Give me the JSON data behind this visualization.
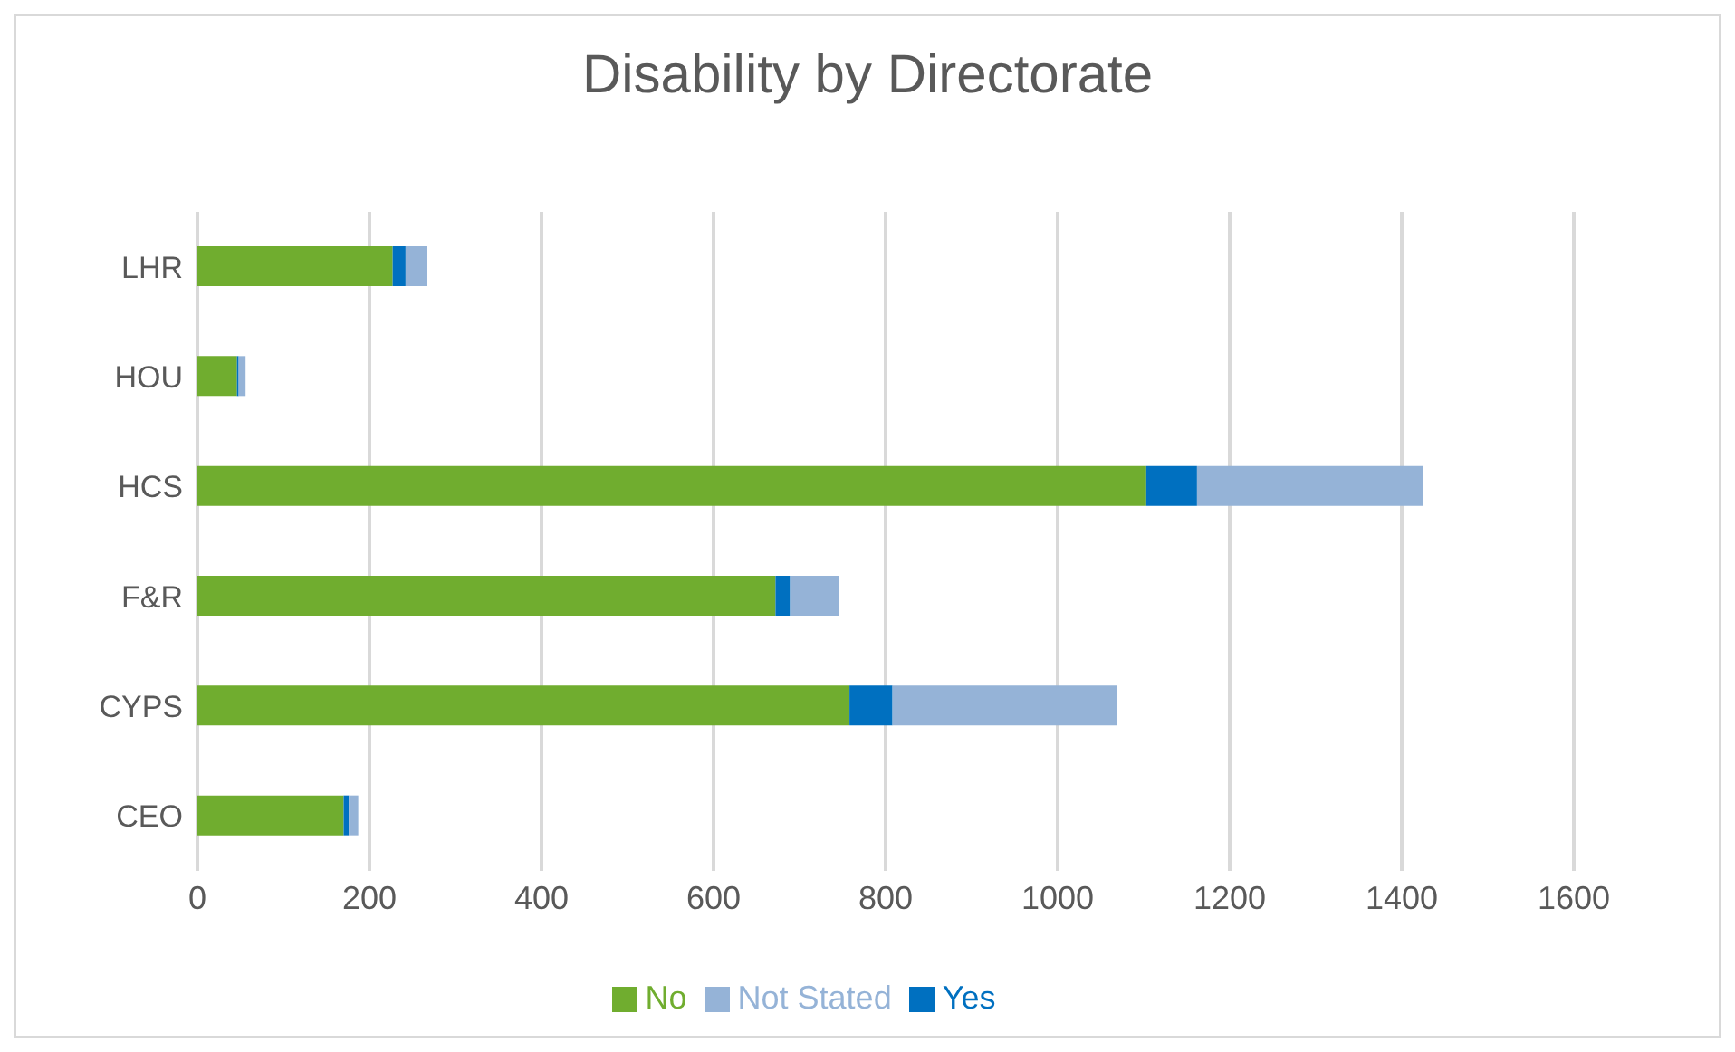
{
  "chart_data": {
    "type": "bar",
    "orientation": "horizontal",
    "stacked": true,
    "title": "Disability by Directorate",
    "categories": [
      "LHR",
      "HOU",
      "HCS",
      "F&R",
      "CYPS",
      "CEO"
    ],
    "series": [
      {
        "name": "No",
        "color": "#70ad2f",
        "values": [
          227,
          46,
          1103,
          672,
          758,
          170
        ]
      },
      {
        "name": "Yes",
        "color": "#0070c0",
        "values": [
          15,
          2,
          59,
          17,
          50,
          6
        ]
      },
      {
        "name": "Not Stated",
        "color": "#95b3d7",
        "values": [
          25,
          8,
          263,
          57,
          261,
          11
        ]
      }
    ],
    "xlim": [
      0,
      1600
    ],
    "xticks": [
      0,
      200,
      400,
      600,
      800,
      1000,
      1200,
      1400,
      1600
    ],
    "grid": "x",
    "legend": "bottom"
  }
}
